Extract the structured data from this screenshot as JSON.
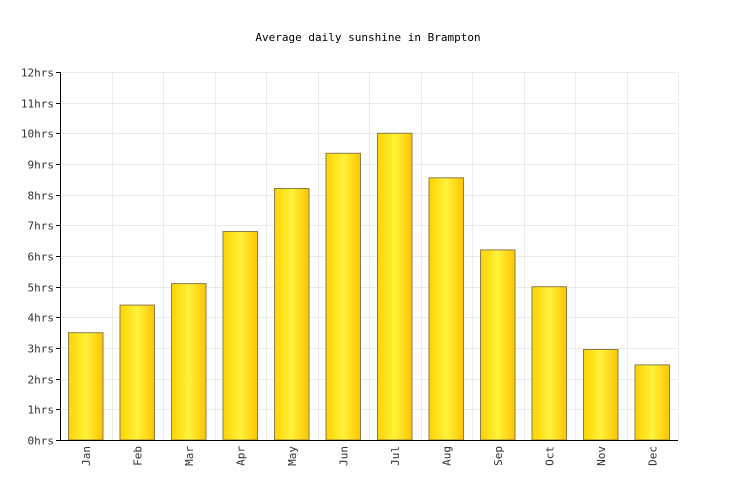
{
  "chart_data": {
    "type": "bar",
    "title": "Average daily sunshine in Brampton",
    "categories": [
      "Jan",
      "Feb",
      "Mar",
      "Apr",
      "May",
      "Jun",
      "Jul",
      "Aug",
      "Sep",
      "Oct",
      "Nov",
      "Dec"
    ],
    "values": [
      3.5,
      4.4,
      5.1,
      6.8,
      8.2,
      9.35,
      10.0,
      8.55,
      6.2,
      5.0,
      2.95,
      2.45
    ],
    "ylim": [
      0,
      12
    ],
    "yticks": [
      "0hrs",
      "1hrs",
      "2hrs",
      "3hrs",
      "4hrs",
      "5hrs",
      "6hrs",
      "7hrs",
      "8hrs",
      "9hrs",
      "10hrs",
      "11hrs",
      "12hrs"
    ],
    "xlabel": "",
    "ylabel": "",
    "grid": true,
    "bar_color": "#ffeb3b"
  }
}
